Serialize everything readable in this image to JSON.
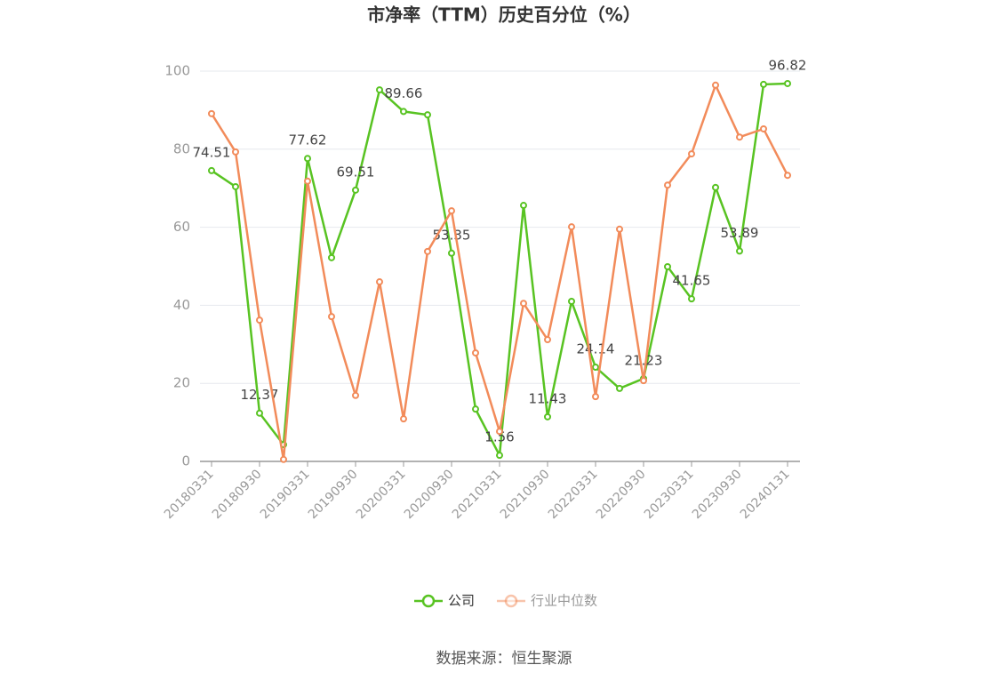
{
  "chart_data": {
    "type": "line",
    "title": "市净率（TTM）历史百分位（%）",
    "source": "数据来源：恒生聚源",
    "categories": [
      "20180331",
      null,
      "20180930",
      null,
      "20190331",
      null,
      "20190930",
      null,
      "20200331",
      null,
      "20200930",
      null,
      "20210331",
      null,
      "20210930",
      null,
      "20220331",
      null,
      "20220930",
      null,
      "20230331",
      null,
      "20230930",
      null,
      "20240131"
    ],
    "series": [
      {
        "name": "公司",
        "color": "#58c322",
        "values": [
          74.51,
          70.4,
          12.37,
          4.3,
          77.62,
          52.2,
          69.51,
          95.2,
          89.66,
          88.8,
          53.35,
          13.4,
          1.56,
          65.6,
          11.43,
          41.0,
          24.14,
          18.7,
          21.23,
          49.9,
          41.65,
          70.2,
          53.89,
          96.6,
          96.82
        ],
        "value_labels": [
          "74.51",
          null,
          "12.37",
          null,
          "77.62",
          null,
          "69.51",
          null,
          "89.66",
          null,
          "53.35",
          null,
          "1.56",
          null,
          "11.43",
          null,
          "24.14",
          null,
          "21.23",
          null,
          "41.65",
          null,
          "53.89",
          null,
          "96.82"
        ]
      },
      {
        "name": "行业中位数",
        "color": "#f28b5a",
        "values": [
          89.1,
          79.3,
          36.2,
          0.5,
          71.8,
          37.1,
          16.9,
          46.0,
          10.9,
          53.8,
          64.2,
          27.8,
          7.7,
          40.5,
          31.2,
          60.1,
          16.6,
          59.5,
          20.7,
          70.8,
          78.8,
          96.4,
          83.1,
          85.2,
          73.3
        ]
      }
    ],
    "ylim": [
      0,
      100
    ],
    "yticks": [
      0,
      20,
      40,
      60,
      80,
      100
    ],
    "grid": true
  }
}
